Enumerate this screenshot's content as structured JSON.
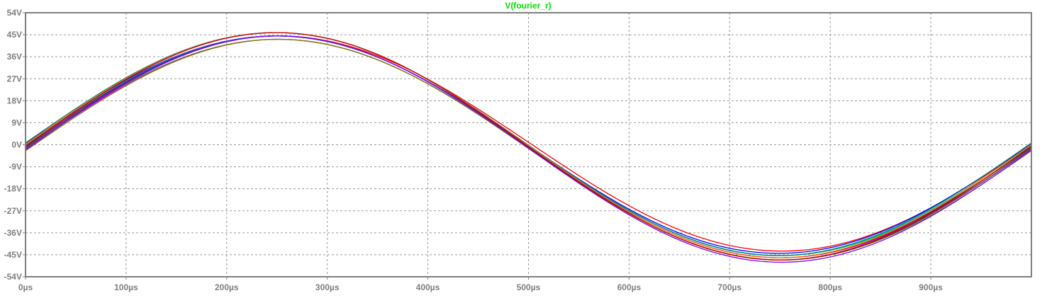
{
  "chart_data": {
    "type": "line",
    "title": "V(fourier_r)",
    "title_color": "#00e000",
    "xlabel": "",
    "ylabel": "",
    "xlim": [
      0,
      1000
    ],
    "ylim": [
      -54,
      54
    ],
    "x_unit": "µs",
    "y_unit": "V",
    "grid": true,
    "legend": "none",
    "x_ticks": [
      0,
      100,
      200,
      300,
      400,
      500,
      600,
      700,
      800,
      900
    ],
    "x_tick_labels": [
      "0µs",
      "100µs",
      "200µs",
      "300µs",
      "400µs",
      "500µs",
      "600µs",
      "700µs",
      "800µs",
      "900µs"
    ],
    "y_ticks": [
      54,
      45,
      36,
      27,
      18,
      9,
      0,
      -9,
      -18,
      -27,
      -36,
      -45,
      -54
    ],
    "y_tick_labels": [
      "54V",
      "45V",
      "36V",
      "27V",
      "18V",
      "9V",
      "0V",
      "-9V",
      "-18V",
      "-27V",
      "-36V",
      "-45V",
      "-54V"
    ],
    "description": "Bundle of overlapping multi-coloured traces forming one cycle of a sine wave",
    "x": [
      0,
      50,
      100,
      150,
      200,
      250,
      300,
      350,
      400,
      450,
      500,
      550,
      600,
      650,
      700,
      750,
      800,
      850,
      900,
      950,
      1000
    ],
    "series_count": 12,
    "amplitude_range": [
      44,
      46.5
    ],
    "offset_range": [
      -2,
      0.5
    ],
    "series_colors": [
      "#ff0000",
      "#00c000",
      "#0000ff",
      "#ff00ff",
      "#00c0c0",
      "#808000",
      "#800080",
      "#008080",
      "#404040",
      "#ff8000",
      "#8000ff",
      "#c00000"
    ],
    "series_representative": {
      "values": [
        -2,
        12.5,
        25,
        35,
        42,
        45,
        43,
        36,
        26,
        13,
        -1,
        -14,
        -27,
        -37,
        -43,
        -46,
        -44,
        -37,
        -27,
        -15,
        -1
      ]
    }
  }
}
